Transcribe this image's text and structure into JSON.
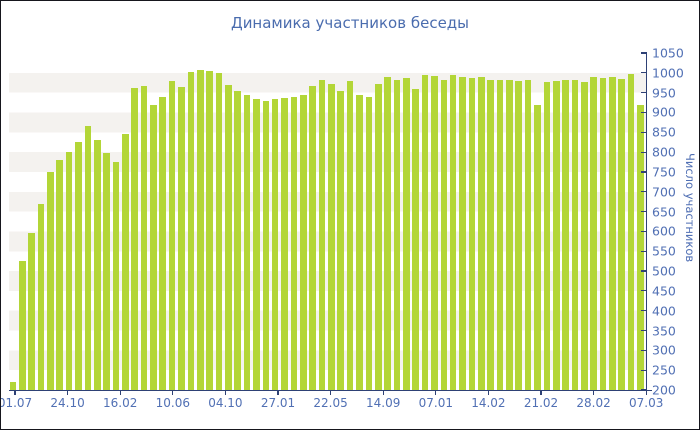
{
  "window": {
    "background": "#ffffff",
    "border_color": "#16161d"
  },
  "chart_data": {
    "type": "bar",
    "title": "Динамика участников беседы",
    "xlabel": "",
    "ylabel": "Число участников",
    "ylabel_side": "right",
    "legend_position": "none",
    "grid": "striped-horizontal-bands",
    "ylim": [
      200,
      1050
    ],
    "y_tick_step": 50,
    "y_tick_labels": [
      "1050",
      "1000",
      "950",
      "900",
      "850",
      "800",
      "750",
      "700",
      "650",
      "600",
      "550",
      "500",
      "450",
      "400",
      "350",
      "300",
      "250",
      "200"
    ],
    "x_tick_labels": [
      "01.07",
      "24.10",
      "16.02",
      "10.06",
      "04.10",
      "27.01",
      "22.05",
      "14.09",
      "07.01",
      "14.02",
      "21.02",
      "28.02",
      "07.03"
    ],
    "values": [
      220,
      525,
      595,
      670,
      750,
      780,
      800,
      825,
      865,
      830,
      798,
      775,
      845,
      963,
      968,
      919,
      940,
      979,
      964,
      1002,
      1008,
      1004,
      999,
      970,
      954,
      945,
      933,
      929,
      935,
      936,
      940,
      943,
      968,
      981,
      971,
      954,
      979,
      943,
      940,
      971,
      990,
      982,
      987,
      960,
      994,
      992,
      983,
      994,
      990,
      988,
      990,
      983,
      982,
      983,
      979,
      981,
      918,
      977,
      979,
      981,
      982,
      977,
      990,
      988,
      990,
      984,
      996,
      920
    ],
    "colors": {
      "bar": "#b3d637",
      "stripe_band": "#f4f2ef",
      "axis": "#2e4175",
      "tick_label": "#5170b4",
      "title": "#4a6cae"
    }
  }
}
